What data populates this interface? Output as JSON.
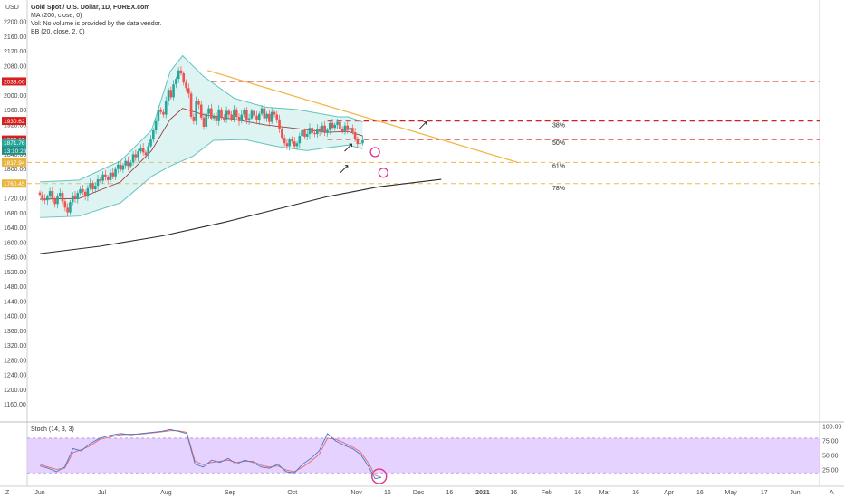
{
  "header": {
    "currency": "USD",
    "title": "Gold Spot / U.S. Dollar, 1D, FOREX.com",
    "legend_lines": [
      "MA (200, close, 0)",
      "Vol: No volume is provided by the data vendor.",
      "BB (20, close, 2, 0)"
    ],
    "stoch_label": "Stoch (14, 3, 3)",
    "bottom_left_z": "Z",
    "bottom_right_a": "A"
  },
  "colors": {
    "up_candle": "#26a69a",
    "down_candle": "#ef5350",
    "bb_band": "#62c4c1",
    "bb_basis": "#9b3b3b",
    "ma200": "#2a2a2a",
    "trendline": "#f2b84b",
    "red_level": "#d71f1f",
    "yellow_level": "#f2b84b",
    "stoch_fill": "#dcc3ff",
    "stoch_k": "#4a78c4",
    "stoch_d": "#e06a6a",
    "circle": "#e0338e"
  },
  "chart_data": [
    {
      "type": "candlestick",
      "y_axis": {
        "range": [
          1120,
          2220
        ],
        "ticks": [
          2200,
          2160,
          2120,
          2080,
          2040,
          2000,
          1960,
          1920,
          1880,
          1840,
          1800,
          1760,
          1720,
          1680,
          1640,
          1600,
          1560,
          1520,
          1480,
          1440,
          1400,
          1360,
          1320,
          1280,
          1240,
          1200,
          1160
        ]
      },
      "x_axis": {
        "labels": [
          "Jun",
          "Jul",
          "Aug",
          "Sep",
          "Oct",
          "Nov",
          "16",
          "Dec",
          "16",
          "2021",
          "16",
          "Feb",
          "16",
          "Mar",
          "16",
          "Apr",
          "16",
          "May",
          "17",
          "Jun"
        ],
        "label_days": [
          1,
          31,
          62,
          93,
          123,
          154,
          169,
          184,
          199,
          215,
          230,
          246,
          261,
          274,
          289,
          305,
          320,
          335,
          351,
          366
        ]
      },
      "price_candles_note": "daily OHLC approximated",
      "closes": [
        1730,
        1720,
        1715,
        1725,
        1740,
        1718,
        1705,
        1725,
        1735,
        1712,
        1695,
        1682,
        1710,
        1728,
        1718,
        1735,
        1745,
        1738,
        1725,
        1748,
        1762,
        1745,
        1755,
        1772,
        1768,
        1785,
        1778,
        1770,
        1790,
        1780,
        1800,
        1812,
        1798,
        1810,
        1822,
        1808,
        1818,
        1840,
        1832,
        1848,
        1858,
        1845,
        1838,
        1862,
        1880,
        1905,
        1930,
        1962,
        1955,
        1948,
        1985,
        2015,
        1995,
        2030,
        2045,
        2068,
        2060,
        2035,
        2020,
        2005,
        1942,
        1930,
        1985,
        1975,
        1940,
        1915,
        1950,
        1965,
        1938,
        1945,
        1930,
        1962,
        1940,
        1935,
        1958,
        1948,
        1935,
        1962,
        1942,
        1930,
        1948,
        1960,
        1932,
        1938,
        1958,
        1945,
        1932,
        1950,
        1965,
        1938,
        1950,
        1928,
        1955,
        1948,
        1935,
        1910,
        1885,
        1870,
        1862,
        1880,
        1875,
        1862,
        1870,
        1890,
        1905,
        1888,
        1895,
        1912,
        1898,
        1895,
        1910,
        1902,
        1918,
        1898,
        1906,
        1925,
        1912,
        1920,
        1928,
        1910,
        1902,
        1918,
        1906,
        1912,
        1900,
        1882,
        1868,
        1870,
        1878
      ],
      "series_ma200": [
        [
          1,
          1570
        ],
        [
          30,
          1590
        ],
        [
          60,
          1618
        ],
        [
          90,
          1655
        ],
        [
          115,
          1690
        ],
        [
          140,
          1725
        ],
        [
          165,
          1752
        ],
        [
          195,
          1772
        ]
      ],
      "series_bb_upper": [
        [
          1,
          1765
        ],
        [
          20,
          1770
        ],
        [
          40,
          1822
        ],
        [
          55,
          1905
        ],
        [
          64,
          2065
        ],
        [
          70,
          2108
        ],
        [
          80,
          2052
        ],
        [
          95,
          1992
        ],
        [
          110,
          1968
        ],
        [
          125,
          1962
        ],
        [
          145,
          1942
        ],
        [
          150,
          1942
        ],
        [
          157,
          1928
        ]
      ],
      "series_bb_lower": [
        [
          1,
          1668
        ],
        [
          20,
          1672
        ],
        [
          40,
          1708
        ],
        [
          55,
          1780
        ],
        [
          64,
          1808
        ],
        [
          75,
          1835
        ],
        [
          85,
          1878
        ],
        [
          100,
          1880
        ],
        [
          115,
          1862
        ],
        [
          130,
          1850
        ],
        [
          140,
          1858
        ],
        [
          150,
          1865
        ],
        [
          157,
          1855
        ]
      ],
      "series_bb_basis": [
        [
          1,
          1718
        ],
        [
          20,
          1720
        ],
        [
          40,
          1765
        ],
        [
          55,
          1850
        ],
        [
          64,
          1935
        ],
        [
          70,
          1965
        ],
        [
          80,
          1948
        ],
        [
          95,
          1935
        ],
        [
          110,
          1920
        ],
        [
          125,
          1910
        ],
        [
          140,
          1900
        ],
        [
          150,
          1902
        ],
        [
          157,
          1890
        ]
      ],
      "trendline": [
        [
          82,
          2068
        ],
        [
          232,
          1818
        ]
      ],
      "levels": [
        {
          "value": 2038.0,
          "label": "2038.00",
          "color": "red",
          "dashed": true
        },
        {
          "value": 1930.62,
          "label": "1930.62",
          "color": "red",
          "dashed": true
        },
        {
          "value": 1880.19,
          "label": "1880.19",
          "color": "red",
          "dashed": true
        },
        {
          "value": 1817.94,
          "label": "1817.94",
          "color": "yellow",
          "dashed": true
        },
        {
          "value": 1760.45,
          "label": "1760.45",
          "color": "yellow",
          "dashed": true
        }
      ],
      "extra_badges": [
        {
          "value": 1871.76,
          "label": "1871.76"
        },
        {
          "value": 1850.0,
          "label": "13:10:28"
        }
      ],
      "fib_labels": [
        {
          "text": "38%",
          "y": 1918
        },
        {
          "text": "50%",
          "y": 1870
        },
        {
          "text": "61%",
          "y": 1808
        },
        {
          "text": "78%",
          "y": 1748
        }
      ],
      "annotation_circles": [
        {
          "day": 163,
          "value": 1846
        },
        {
          "day": 167,
          "value": 1790
        }
      ],
      "annotation_arrows": [
        {
          "day": 186,
          "value": 1918
        },
        {
          "day": 150,
          "value": 1858
        },
        {
          "day": 148,
          "value": 1800
        }
      ]
    },
    {
      "type": "line",
      "name": "Stoch (14, 3, 3)",
      "y_axis": {
        "range": [
          0,
          105
        ],
        "ticks": [
          100,
          75,
          50,
          25
        ]
      },
      "bands": [
        20,
        80
      ],
      "k_line": [
        [
          1,
          32
        ],
        [
          5,
          28
        ],
        [
          9,
          22
        ],
        [
          13,
          30
        ],
        [
          17,
          62
        ],
        [
          21,
          58
        ],
        [
          25,
          70
        ],
        [
          30,
          80
        ],
        [
          35,
          85
        ],
        [
          40,
          88
        ],
        [
          45,
          86
        ],
        [
          50,
          88
        ],
        [
          55,
          90
        ],
        [
          60,
          92
        ],
        [
          64,
          95
        ],
        [
          68,
          92
        ],
        [
          72,
          88
        ],
        [
          76,
          35
        ],
        [
          80,
          30
        ],
        [
          84,
          42
        ],
        [
          88,
          38
        ],
        [
          92,
          45
        ],
        [
          96,
          35
        ],
        [
          100,
          42
        ],
        [
          104,
          38
        ],
        [
          108,
          30
        ],
        [
          112,
          28
        ],
        [
          116,
          35
        ],
        [
          120,
          22
        ],
        [
          124,
          20
        ],
        [
          128,
          35
        ],
        [
          132,
          45
        ],
        [
          136,
          58
        ],
        [
          140,
          88
        ],
        [
          144,
          75
        ],
        [
          148,
          68
        ],
        [
          152,
          62
        ],
        [
          156,
          52
        ],
        [
          160,
          30
        ],
        [
          163,
          10
        ],
        [
          166,
          12
        ]
      ],
      "d_line": [
        [
          1,
          35
        ],
        [
          5,
          30
        ],
        [
          9,
          26
        ],
        [
          13,
          28
        ],
        [
          17,
          55
        ],
        [
          21,
          60
        ],
        [
          25,
          66
        ],
        [
          30,
          78
        ],
        [
          35,
          82
        ],
        [
          40,
          86
        ],
        [
          45,
          87
        ],
        [
          50,
          87
        ],
        [
          55,
          89
        ],
        [
          60,
          91
        ],
        [
          64,
          93
        ],
        [
          68,
          93
        ],
        [
          72,
          90
        ],
        [
          76,
          40
        ],
        [
          80,
          34
        ],
        [
          84,
          38
        ],
        [
          88,
          40
        ],
        [
          92,
          42
        ],
        [
          96,
          38
        ],
        [
          100,
          40
        ],
        [
          104,
          40
        ],
        [
          108,
          33
        ],
        [
          112,
          30
        ],
        [
          116,
          32
        ],
        [
          120,
          25
        ],
        [
          124,
          22
        ],
        [
          128,
          30
        ],
        [
          132,
          40
        ],
        [
          136,
          52
        ],
        [
          140,
          80
        ],
        [
          144,
          78
        ],
        [
          148,
          72
        ],
        [
          152,
          65
        ],
        [
          156,
          56
        ],
        [
          160,
          36
        ],
        [
          163,
          16
        ],
        [
          166,
          12
        ]
      ],
      "circle_day": 165,
      "circle_value": 14
    }
  ]
}
